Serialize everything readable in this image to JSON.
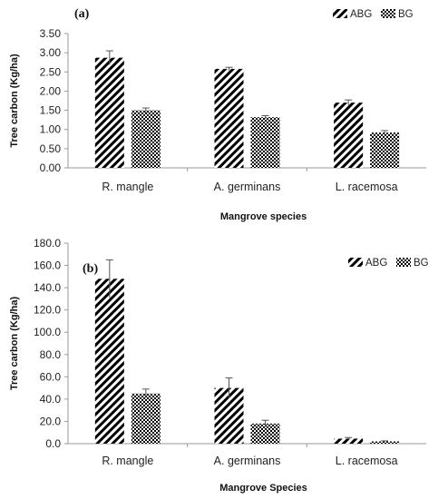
{
  "colors": {
    "bar_fill": "#000000",
    "background": "#ffffff",
    "axis": "#9a9a9a"
  },
  "chart_data": [
    {
      "type": "bar",
      "panel_label": "(a)",
      "categories": [
        "R. mangle",
        "A. germinans",
        "L. racemosa"
      ],
      "series": [
        {
          "name": "ABG",
          "pattern": "diagonal-hatch",
          "values": [
            2.87,
            2.58,
            1.7
          ],
          "errors": [
            0.18,
            0.04,
            0.07
          ]
        },
        {
          "name": "BG",
          "pattern": "checker",
          "values": [
            1.5,
            1.32,
            0.92
          ],
          "errors": [
            0.06,
            0.04,
            0.05
          ]
        }
      ],
      "xlabel": "Mangrove species",
      "ylabel": "Tree carbon (Kg/ha)",
      "ylim": [
        0,
        3.5
      ],
      "yticks": [
        "0.00",
        "0.50",
        "1.00",
        "1.50",
        "2.00",
        "2.50",
        "3.00",
        "3.50"
      ],
      "grid": false,
      "legend": "top-right"
    },
    {
      "type": "bar",
      "panel_label": "(b)",
      "categories": [
        "R. mangle",
        "A. germinans",
        "L. racemosa"
      ],
      "series": [
        {
          "name": "ABG",
          "pattern": "diagonal-hatch",
          "values": [
            148,
            50,
            4.5
          ],
          "errors": [
            17,
            9,
            1
          ]
        },
        {
          "name": "BG",
          "pattern": "checker",
          "values": [
            45,
            18,
            2
          ],
          "errors": [
            4,
            3,
            0.5
          ]
        }
      ],
      "xlabel": "Mangrove Species",
      "ylabel": "Tree carbon (Kg/ha)",
      "ylim": [
        0,
        180
      ],
      "yticks": [
        "0.0",
        "20.0",
        "40.0",
        "60.0",
        "80.0",
        "100.0",
        "120.0",
        "140.0",
        "160.0",
        "180.0"
      ],
      "grid": false,
      "legend": "top-right"
    }
  ]
}
